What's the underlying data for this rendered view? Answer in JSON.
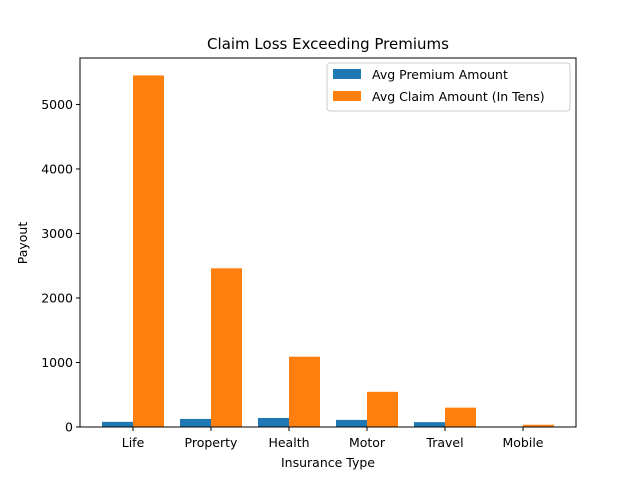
{
  "chart_data": {
    "type": "bar",
    "title": "Claim Loss Exceeding Premiums",
    "xlabel": "Insurance Type",
    "ylabel": "Payout",
    "categories": [
      "Life",
      "Property",
      "Health",
      "Motor",
      "Travel",
      "Mobile"
    ],
    "series": [
      {
        "name": "Avg Premium Amount",
        "color": "#1f77b4",
        "values": [
          80,
          125,
          140,
          110,
          75,
          5
        ]
      },
      {
        "name": "Avg Claim Amount (In Tens)",
        "color": "#ff7f0e",
        "values": [
          5450,
          2460,
          1090,
          545,
          300,
          35
        ]
      }
    ],
    "ylim": [
      0,
      5720
    ],
    "yticks": [
      0,
      1000,
      2000,
      3000,
      4000,
      5000
    ],
    "legend_position": "top-right",
    "grid": false
  }
}
